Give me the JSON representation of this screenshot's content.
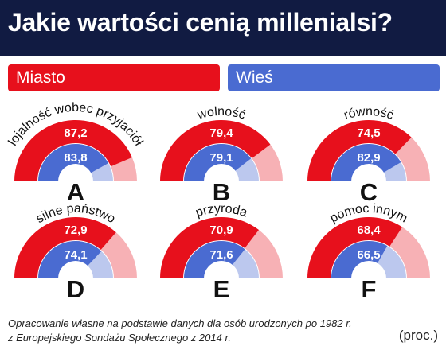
{
  "header": {
    "title": "Jakie wartości cenią millenialsi?"
  },
  "legend": {
    "city": "Miasto",
    "village": "Wieś"
  },
  "colors": {
    "header_bg": "#111b42",
    "city": "#e7101c",
    "city_light": "#f7b1b5",
    "village": "#4a6bd1",
    "village_light": "#bcc8ee"
  },
  "chart_data": [
    {
      "type": "semicircle-gauge",
      "letter": "A",
      "label": "lojalność wobec przyjaciół",
      "series": [
        {
          "name": "Miasto",
          "value": 87.2
        },
        {
          "name": "Wieś",
          "value": 83.8
        }
      ],
      "ylim": [
        0,
        100
      ]
    },
    {
      "type": "semicircle-gauge",
      "letter": "B",
      "label": "wolność",
      "series": [
        {
          "name": "Miasto",
          "value": 79.4
        },
        {
          "name": "Wieś",
          "value": 79.1
        }
      ],
      "ylim": [
        0,
        100
      ]
    },
    {
      "type": "semicircle-gauge",
      "letter": "C",
      "label": "równość",
      "series": [
        {
          "name": "Miasto",
          "value": 74.5
        },
        {
          "name": "Wieś",
          "value": 82.9
        }
      ],
      "ylim": [
        0,
        100
      ]
    },
    {
      "type": "semicircle-gauge",
      "letter": "D",
      "label": "silne państwo",
      "series": [
        {
          "name": "Miasto",
          "value": 72.9
        },
        {
          "name": "Wieś",
          "value": 74.1
        }
      ],
      "ylim": [
        0,
        100
      ]
    },
    {
      "type": "semicircle-gauge",
      "letter": "E",
      "label": "przyroda",
      "series": [
        {
          "name": "Miasto",
          "value": 70.9
        },
        {
          "name": "Wieś",
          "value": 71.6
        }
      ],
      "ylim": [
        0,
        100
      ]
    },
    {
      "type": "semicircle-gauge",
      "letter": "F",
      "label": "pomoc innym",
      "series": [
        {
          "name": "Miasto",
          "value": 68.4
        },
        {
          "name": "Wieś",
          "value": 66.5
        }
      ],
      "ylim": [
        0,
        100
      ]
    }
  ],
  "footnote": "Opracowanie własne na podstawie danych dla osób urodzonych po 1982 r. z Europejskiego Sondażu Społecznego z 2014 r.",
  "unit": "(proc.)"
}
